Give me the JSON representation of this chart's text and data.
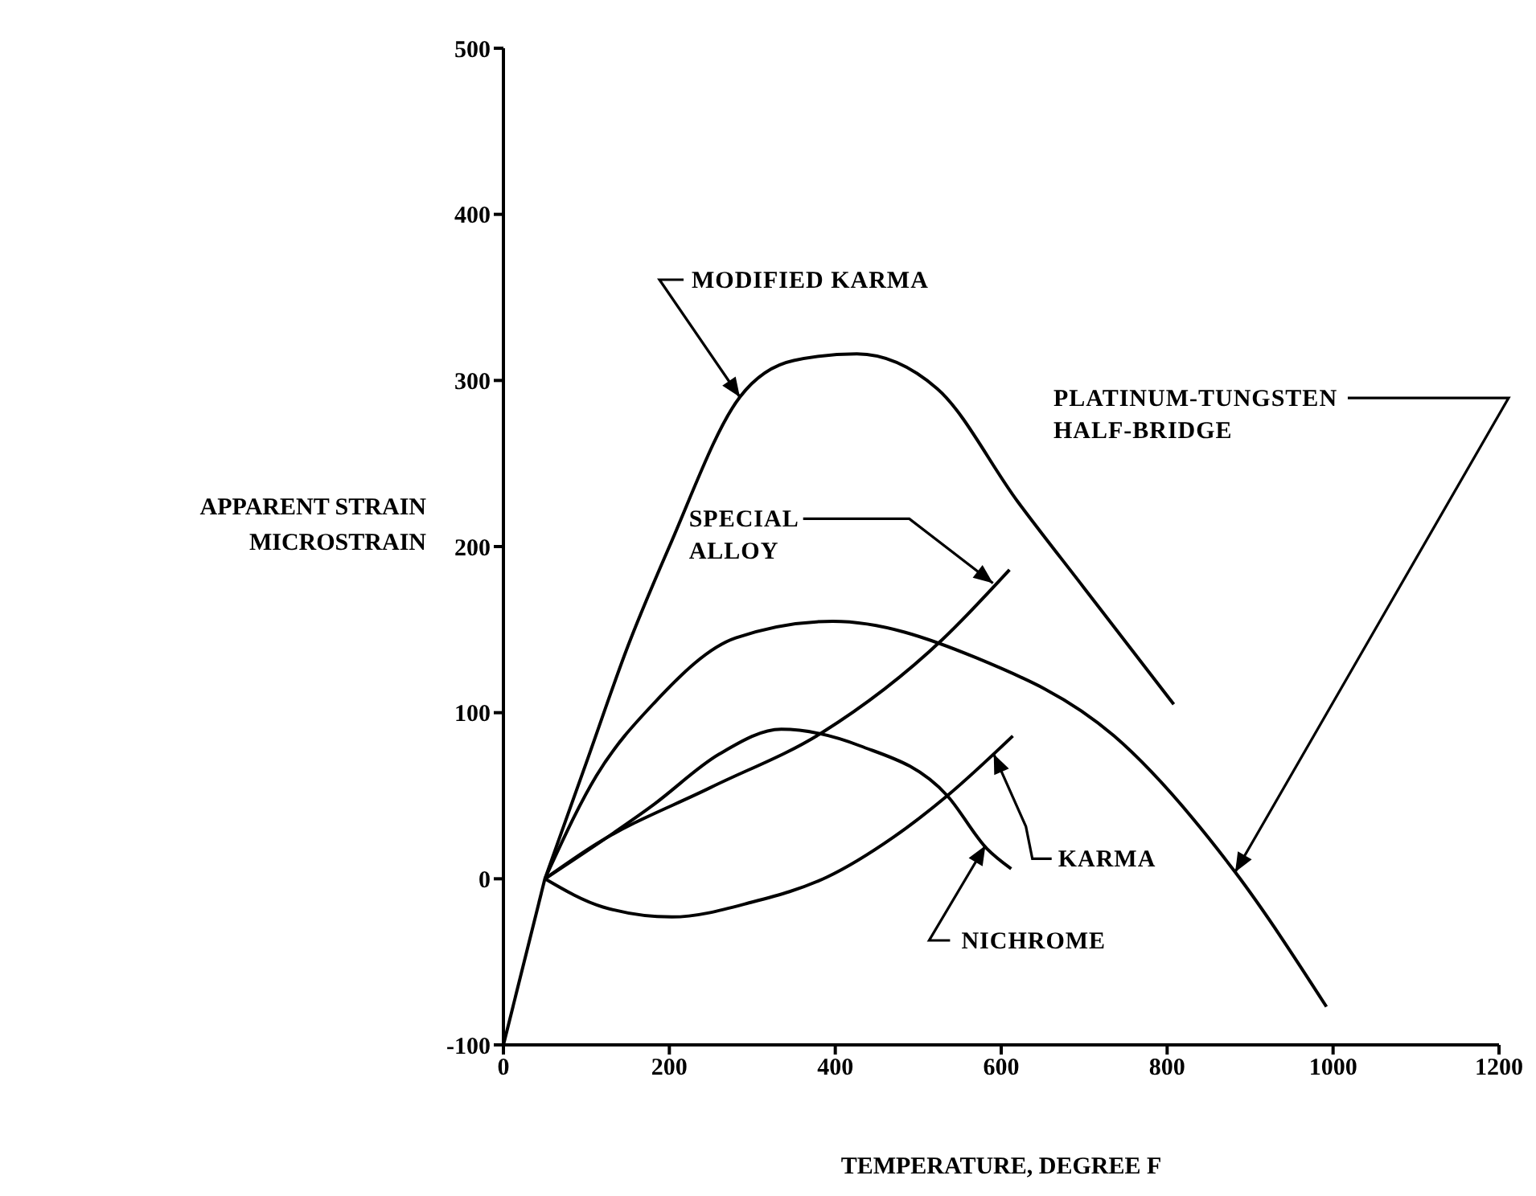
{
  "chart_data": {
    "type": "line",
    "xlabel": "TEMPERATURE, DEGREE F",
    "ylabel": "APPARENT STRAIN\nMICROSTRAIN",
    "xlim": [
      0,
      1200
    ],
    "xticks": [
      0,
      200,
      400,
      600,
      800,
      1000,
      1200
    ],
    "ylim": [
      -100,
      500
    ],
    "yticks": [
      -100,
      0,
      100,
      200,
      300,
      400,
      500
    ],
    "grid": false,
    "legend": false,
    "marker": "none",
    "line_style": "solid",
    "series": [
      {
        "color": "#000000",
        "x": [
          0,
          50
        ],
        "values": [
          -100,
          0
        ]
      },
      {
        "color": "#000000",
        "x": [
          50,
          100,
          150,
          200,
          285,
          350,
          426,
          523,
          620,
          700,
          808
        ],
        "values": [
          0,
          70,
          140,
          200,
          290,
          312,
          316,
          295,
          227,
          175,
          105
        ]
      },
      {
        "color": "#000000",
        "x": [
          50,
          112,
          182,
          280,
          397,
          570,
          736,
          882,
          992
        ],
        "values": [
          0,
          62,
          106,
          145,
          155,
          133,
          86,
          4,
          -77
        ]
      },
      {
        "color": "#000000",
        "x": [
          50,
          112,
          250,
          384,
          529,
          610
        ],
        "values": [
          0,
          21,
          55,
          88,
          144,
          186
        ]
      },
      {
        "color": "#000000",
        "x": [
          50,
          182,
          260,
          335,
          430,
          535,
          583,
          612
        ],
        "values": [
          0,
          45,
          75,
          90,
          80,
          50,
          18,
          6
        ]
      },
      {
        "color": "#000000",
        "x": [
          50,
          120,
          203,
          300,
          390,
          470,
          535,
          614
        ],
        "values": [
          0,
          -17,
          -23,
          -14,
          1,
          25,
          50,
          86
        ]
      }
    ],
    "annotations": [
      {
        "text": "MODIFIED KARMA",
        "x": 285,
        "y": 290
      },
      {
        "text": "SPECIAL\nALLOY",
        "x": 590,
        "y": 178
      },
      {
        "text": "PLATINUM-TUNGSTEN\nHALF-BRIDGE",
        "x": 882,
        "y": 4
      },
      {
        "text": "KARMA",
        "x": 591,
        "y": 75
      },
      {
        "text": "NICHROME",
        "x": 581,
        "y": 20
      }
    ]
  }
}
